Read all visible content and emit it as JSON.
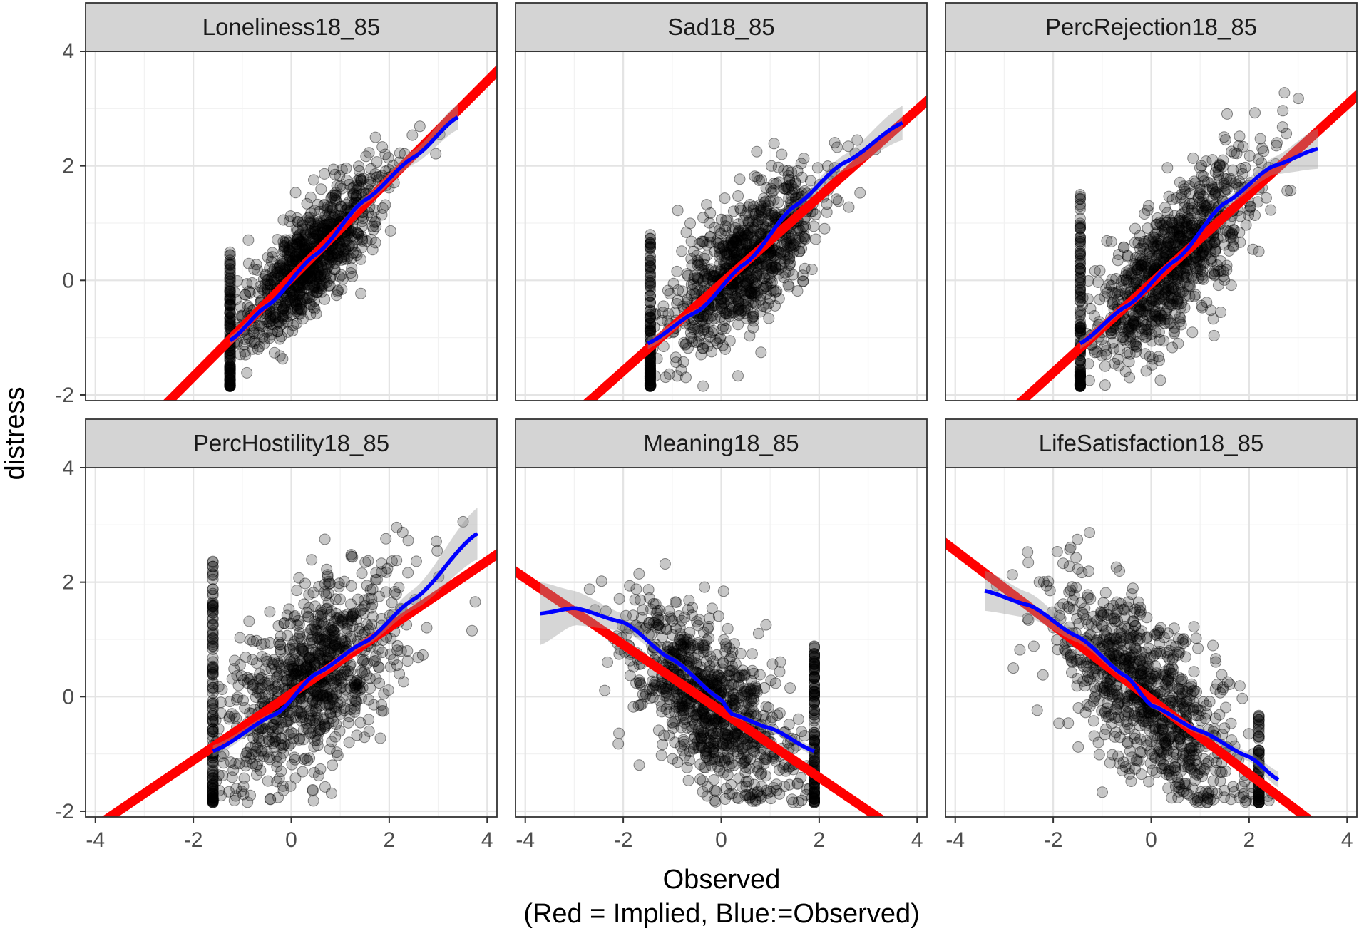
{
  "chart_data": {
    "type": "scatter",
    "layout": "faceted 2 rows x 3 columns",
    "xlabel": "Observed",
    "xlabel_note": "(Red = Implied, Blue:=Observed)",
    "ylabel": "distress",
    "xlim": [
      -4.2,
      4.2
    ],
    "ylim": [
      -2.1,
      4.0
    ],
    "x_ticks": [
      -4,
      -2,
      0,
      2,
      4
    ],
    "y_ticks": [
      -2,
      0,
      2,
      4
    ],
    "grid": true,
    "colors": {
      "points": "#000000",
      "implied_line": "#ff0000",
      "observed_smooth": "#0000ff",
      "ribbon": "#999999",
      "strip": "#d4d4d4"
    },
    "panels": [
      {
        "name": "Loneliness18_85",
        "implied_line": {
          "slope": 0.86,
          "intercept": 0.04
        },
        "observed_smooth": {
          "x": [
            -1.25,
            -0.5,
            0.5,
            1.5,
            2.5,
            3.4
          ],
          "y": [
            -1.05,
            -0.45,
            0.45,
            1.4,
            2.15,
            2.85
          ]
        },
        "ribbon_halfwidth": [
          0.08,
          0.05,
          0.05,
          0.07,
          0.12,
          0.22
        ],
        "point_cloud": {
          "n": 900,
          "x_min": -1.25,
          "x_max": 3.8,
          "x_center": 0.4,
          "x_spread": 0.75,
          "floor_x": -1.25,
          "floor_count": 130,
          "floor_y_range": [
            -1.85,
            0.5
          ],
          "noise": 0.45
        }
      },
      {
        "name": "Sad18_85",
        "implied_line": {
          "slope": 0.76,
          "intercept": -0.06
        },
        "observed_smooth": {
          "x": [
            -1.5,
            -0.5,
            0.5,
            1.5,
            2.5,
            3.7
          ],
          "y": [
            -1.1,
            -0.55,
            0.3,
            1.3,
            2.05,
            2.75
          ]
        },
        "ribbon_halfwidth": [
          0.1,
          0.05,
          0.05,
          0.07,
          0.14,
          0.3
        ],
        "point_cloud": {
          "n": 900,
          "x_min": -1.5,
          "x_max": 3.7,
          "x_center": 0.5,
          "x_spread": 0.8,
          "floor_x": -1.45,
          "floor_count": 130,
          "floor_y_range": [
            -1.85,
            0.8
          ],
          "noise": 0.55
        }
      },
      {
        "name": "PercRejection18_85",
        "implied_line": {
          "slope": 0.78,
          "intercept": -0.05
        },
        "observed_smooth": {
          "x": [
            -1.45,
            -0.5,
            0.5,
            1.5,
            2.5,
            3.4
          ],
          "y": [
            -1.1,
            -0.45,
            0.35,
            1.35,
            2.0,
            2.3
          ]
        },
        "ribbon_halfwidth": [
          0.1,
          0.05,
          0.05,
          0.07,
          0.15,
          0.35
        ],
        "point_cloud": {
          "n": 900,
          "x_min": -1.45,
          "x_max": 3.6,
          "x_center": 0.4,
          "x_spread": 0.85,
          "floor_x": -1.45,
          "floor_count": 130,
          "floor_y_range": [
            -1.85,
            1.5
          ],
          "noise": 0.6
        }
      },
      {
        "name": "PercHostility18_85",
        "implied_line": {
          "slope": 0.58,
          "intercept": 0.05
        },
        "observed_smooth": {
          "x": [
            -1.6,
            -0.3,
            0.5,
            1.5,
            2.5,
            3.8
          ],
          "y": [
            -0.95,
            -0.3,
            0.4,
            0.95,
            1.7,
            2.85
          ]
        },
        "ribbon_halfwidth": [
          0.1,
          0.05,
          0.05,
          0.07,
          0.18,
          0.45
        ],
        "point_cloud": {
          "n": 900,
          "x_min": -1.6,
          "x_max": 3.8,
          "x_center": 0.3,
          "x_spread": 0.9,
          "floor_x": -1.6,
          "floor_count": 130,
          "floor_y_range": [
            -1.85,
            2.4
          ],
          "noise": 0.75
        }
      },
      {
        "name": "Meaning18_85",
        "implied_line": {
          "slope": -0.58,
          "intercept": -0.25
        },
        "observed_smooth": {
          "x": [
            -3.7,
            -3.0,
            -2.0,
            -1.0,
            0.0,
            0.2,
            1.0,
            1.9
          ],
          "y": [
            1.45,
            1.55,
            1.3,
            0.65,
            -0.05,
            -0.3,
            -0.55,
            -0.95
          ]
        },
        "ribbon_halfwidth": [
          0.55,
          0.3,
          0.15,
          0.06,
          0.05,
          0.05,
          0.06,
          0.08
        ],
        "point_cloud": {
          "n": 900,
          "x_min": -3.8,
          "x_max": 1.9,
          "x_center": -0.2,
          "x_spread": 0.85,
          "floor_x": 1.9,
          "floor_count": 130,
          "floor_y_range": [
            -1.85,
            0.9
          ],
          "noise": 0.7
        }
      },
      {
        "name": "LifeSatisfaction18_85",
        "implied_line": {
          "slope": -0.65,
          "intercept": -0.05
        },
        "observed_smooth": {
          "x": [
            -3.4,
            -2.5,
            -1.5,
            -0.5,
            0.0,
            1.0,
            2.0,
            2.6
          ],
          "y": [
            1.85,
            1.6,
            1.05,
            0.35,
            -0.15,
            -0.6,
            -1.05,
            -1.45
          ]
        },
        "ribbon_halfwidth": [
          0.35,
          0.22,
          0.1,
          0.05,
          0.05,
          0.06,
          0.08,
          0.14
        ],
        "point_cloud": {
          "n": 900,
          "x_min": -3.5,
          "x_max": 2.6,
          "x_center": -0.1,
          "x_spread": 0.95,
          "floor_x": 2.2,
          "floor_count": 70,
          "floor_y_range": [
            -1.85,
            -0.3
          ],
          "noise": 0.7
        }
      }
    ]
  }
}
